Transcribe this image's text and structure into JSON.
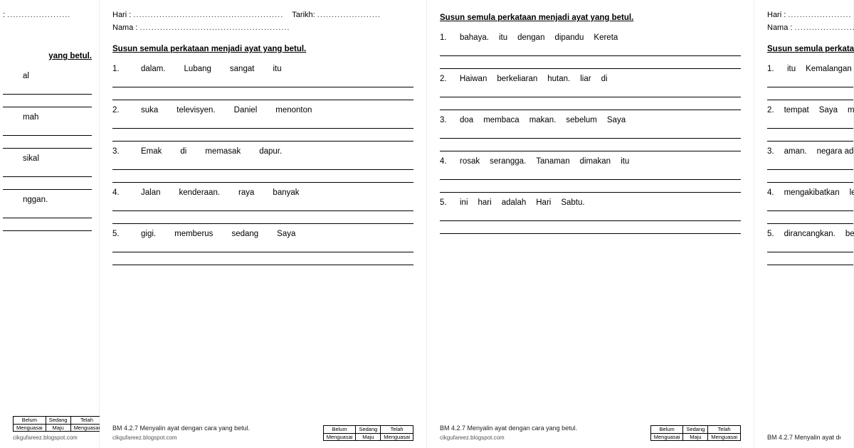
{
  "labels": {
    "hari": "Hari :",
    "tarikh": "Tarikh:",
    "nama": "Nama :",
    "dots": "....................................................",
    "dots_short": "......................",
    "instruction": "Susun semula perkataan menjadi ayat yang betul.",
    "instruction_frag_left": "yang betul.",
    "instruction_frag_right": "Susun semula perkataan menj",
    "footnote": "BM 4.2.7 Menyalin ayat dengan cara yang betul.",
    "blog": "cikgufareez.blogspot.com",
    "rubric": {
      "a": "Belum",
      "b": "Menguasai",
      "c": "Sedang",
      "d": "Maju",
      "e": "Telah",
      "f": "Menguasai"
    }
  },
  "sheet1_frag": [
    {
      "n": "",
      "w": [
        "al"
      ]
    },
    {
      "n": "",
      "w": [
        "mah"
      ]
    },
    {
      "n": "",
      "w": [
        "sikal"
      ]
    },
    {
      "n": "",
      "w": [
        "nggan."
      ]
    }
  ],
  "sheet2": [
    {
      "n": "1.",
      "w": [
        "dalam.",
        "Lubang",
        "sangat",
        "itu"
      ]
    },
    {
      "n": "2.",
      "w": [
        "suka",
        "televisyen.",
        "Daniel",
        "menonton"
      ]
    },
    {
      "n": "3.",
      "w": [
        "Emak",
        "di",
        "memasak",
        "dapur."
      ]
    },
    {
      "n": "4.",
      "w": [
        "Jalan",
        "kenderaan.",
        "raya",
        "banyak"
      ]
    },
    {
      "n": "5.",
      "w": [
        "gigi.",
        "memberus",
        "sedang",
        "Saya"
      ]
    }
  ],
  "sheet3": [
    {
      "n": "1.",
      "w": [
        "bahaya.",
        "itu",
        "dengan",
        "dipandu",
        "Kereta"
      ]
    },
    {
      "n": "2.",
      "w": [
        "Haiwan",
        "berkeliaran",
        "hutan.",
        "liar",
        "di"
      ]
    },
    {
      "n": "3.",
      "w": [
        "doa",
        "membaca",
        "makan.",
        "sebelum",
        "Saya"
      ]
    },
    {
      "n": "4.",
      "w": [
        "rosak",
        "serangga.",
        "Tanaman",
        "dimakan",
        "itu"
      ]
    },
    {
      "n": "5.",
      "w": [
        "ini",
        "hari",
        "adalah",
        "Hari",
        "Sabtu."
      ]
    }
  ],
  "sheet4_frag": [
    {
      "n": "1.",
      "w": [
        "itu",
        "Kemalangan"
      ]
    },
    {
      "n": "2.",
      "w": [
        "tempat",
        "Saya",
        "me"
      ]
    },
    {
      "n": "3.",
      "w": [
        "aman.",
        "negara ad"
      ]
    },
    {
      "n": "4.",
      "w": [
        "mengakibatkan",
        "leb"
      ]
    },
    {
      "n": "5.",
      "w": [
        "dirancangkan.",
        "berk"
      ]
    }
  ]
}
